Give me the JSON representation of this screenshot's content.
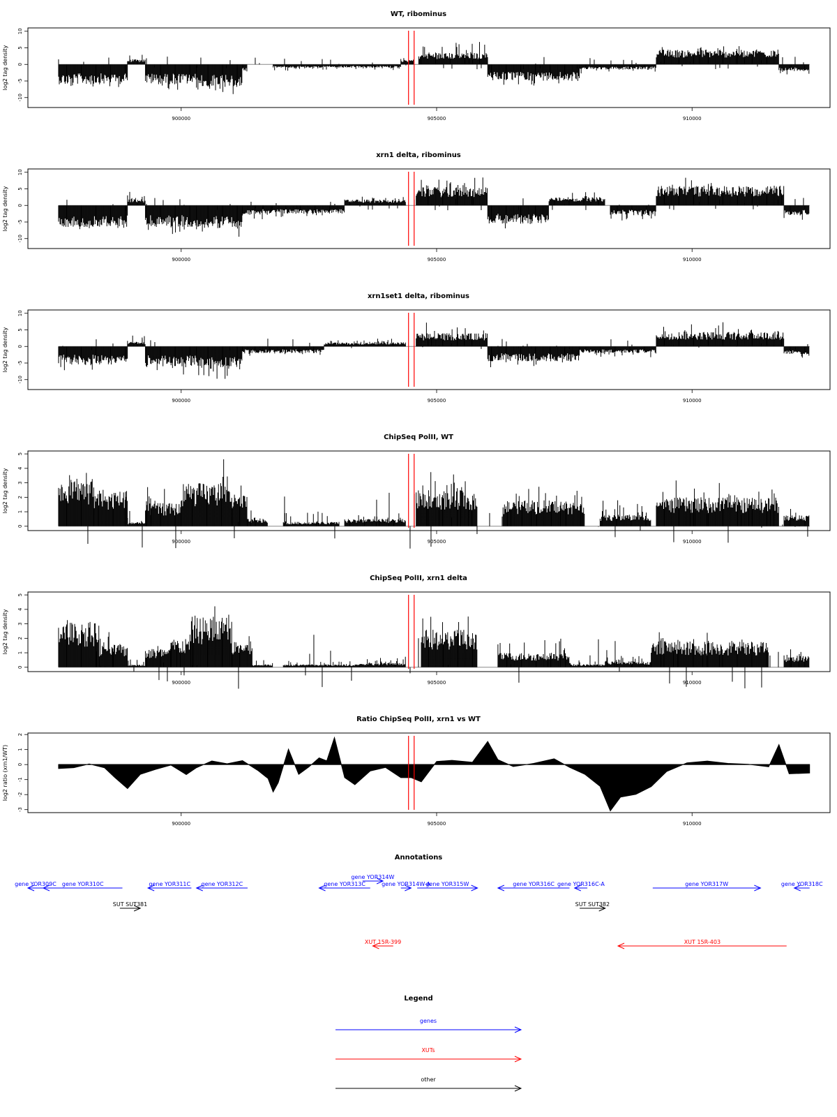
{
  "chart_data": [
    {
      "type": "bar",
      "title": "WT, ribominus",
      "ylabel": "log2 tag density",
      "xlim": [
        897000,
        912700
      ],
      "ylim": [
        -13,
        11
      ],
      "yticks": [
        10,
        5,
        0,
        -5,
        -10
      ],
      "xticks": [
        900000,
        905000,
        910000
      ],
      "xtick_labels": [
        "900000",
        "905000",
        "910000"
      ],
      "red_lines": [
        904450,
        904560
      ],
      "series": [
        {
          "values": [
            [
              897600,
              898950,
              -6,
              -9
            ],
            [
              898950,
              899300,
              1.5,
              3.5
            ],
            [
              899300,
              900300,
              -6,
              -9
            ],
            [
              900300,
              901200,
              -7,
              -11
            ],
            [
              901200,
              901300,
              -2,
              -3
            ],
            [
              901800,
              904300,
              -1,
              -2
            ],
            [
              904300,
              904550,
              1.5,
              2.2
            ],
            [
              904650,
              906000,
              3.5,
              8
            ],
            [
              906000,
              907800,
              -5,
              -7
            ],
            [
              907800,
              909300,
              -1.5,
              -3
            ],
            [
              909300,
              911700,
              4.5,
              6.5
            ],
            [
              911700,
              912300,
              -2,
              -3.5
            ]
          ]
        }
      ]
    },
    {
      "type": "bar",
      "title": "xrn1 delta, ribominus",
      "ylabel": "log2 tag density",
      "xlim": [
        897000,
        912700
      ],
      "ylim": [
        -13,
        11
      ],
      "yticks": [
        10,
        5,
        0,
        -5,
        -10
      ],
      "xticks": [
        900000,
        905000,
        910000
      ],
      "xtick_labels": [
        "900000",
        "905000",
        "910000"
      ],
      "red_lines": [
        904450,
        904560
      ],
      "series": [
        {
          "values": [
            [
              897600,
              898950,
              -6.5,
              -9
            ],
            [
              898950,
              899300,
              2,
              4.5
            ],
            [
              899300,
              900300,
              -6.5,
              -9
            ],
            [
              900300,
              901200,
              -7,
              -11
            ],
            [
              901200,
              901600,
              -3,
              -5
            ],
            [
              901600,
              903200,
              -2.5,
              -4
            ],
            [
              903200,
              904400,
              1.8,
              3
            ],
            [
              904600,
              906000,
              5.5,
              9
            ],
            [
              906000,
              907200,
              -5.5,
              -7.5
            ],
            [
              907200,
              908300,
              2.5,
              4.5
            ],
            [
              908400,
              909300,
              -3,
              -5
            ],
            [
              909300,
              911800,
              6,
              8.5
            ],
            [
              911800,
              912300,
              -3,
              -5
            ]
          ]
        }
      ]
    },
    {
      "type": "bar",
      "title": "xrn1set1 delta, ribominus",
      "ylabel": "log2 tag density",
      "xlim": [
        897000,
        912700
      ],
      "ylim": [
        -13,
        11
      ],
      "yticks": [
        10,
        5,
        0,
        -5,
        -10
      ],
      "xticks": [
        900000,
        905000,
        910000
      ],
      "xtick_labels": [
        "900000",
        "905000",
        "910000"
      ],
      "red_lines": [
        904450,
        904560
      ],
      "series": [
        {
          "values": [
            [
              897600,
              898950,
              -5.5,
              -8
            ],
            [
              898950,
              899300,
              1.5,
              4
            ],
            [
              899300,
              900300,
              -6,
              -9
            ],
            [
              900300,
              901200,
              -7,
              -10.5
            ],
            [
              901200,
              902800,
              -2,
              -3.5
            ],
            [
              902800,
              904400,
              1.2,
              2.5
            ],
            [
              904600,
              906000,
              4,
              7.5
            ],
            [
              906000,
              907800,
              -4.5,
              -7
            ],
            [
              907800,
              909300,
              -2,
              -4
            ],
            [
              909300,
              911800,
              4.5,
              7.5
            ],
            [
              911800,
              912300,
              -2.5,
              -4.5
            ]
          ]
        }
      ]
    },
    {
      "type": "bar",
      "title": "ChipSeq PolII, WT",
      "ylabel": "log2 tag density",
      "xlim": [
        897000,
        912700
      ],
      "ylim": [
        -0.3,
        5.2
      ],
      "yticks": [
        0,
        1,
        2,
        3,
        4,
        5
      ],
      "xticks": [
        900000,
        905000,
        910000
      ],
      "xtick_labels": [
        "900000",
        "905000",
        "910000"
      ],
      "red_lines": [
        904450,
        904560
      ],
      "series": [
        {
          "values": [
            [
              897600,
              898300,
              3.3,
              4.3
            ],
            [
              898300,
              898950,
              2.5,
              3.2
            ],
            [
              898950,
              899300,
              0.3,
              1
            ],
            [
              899300,
              900000,
              1.6,
              2.8
            ],
            [
              900000,
              901000,
              3,
              4.9
            ],
            [
              901000,
              901300,
              2.2,
              3.2
            ],
            [
              901300,
              901700,
              0.5,
              1
            ],
            [
              902000,
              903100,
              0.3,
              1
            ],
            [
              903200,
              904400,
              0.5,
              1
            ],
            [
              904600,
              905800,
              2.5,
              4
            ],
            [
              906300,
              907900,
              1.8,
              3
            ],
            [
              908200,
              909200,
              0.8,
              2
            ],
            [
              909300,
              911700,
              2,
              3.3
            ],
            [
              911800,
              912300,
              0.8,
              1.6
            ]
          ]
        }
      ]
    },
    {
      "type": "bar",
      "title": "ChipSeq PolII, xrn1 delta",
      "ylabel": "log2 tag density",
      "xlim": [
        897000,
        912700
      ],
      "ylim": [
        -0.3,
        5.2
      ],
      "yticks": [
        0,
        1,
        2,
        3,
        4,
        5
      ],
      "xticks": [
        900000,
        905000,
        910000
      ],
      "xtick_labels": [
        "900000",
        "905000",
        "910000"
      ],
      "red_lines": [
        904450,
        904560
      ],
      "series": [
        {
          "values": [
            [
              897600,
              898400,
              3.1,
              3.9
            ],
            [
              898400,
              898950,
              1.6,
              2.6
            ],
            [
              898950,
              899300,
              0.2,
              0.6
            ],
            [
              899300,
              899800,
              1.3,
              2.3
            ],
            [
              899800,
              900200,
              2,
              3
            ],
            [
              900200,
              901000,
              3.5,
              4.9
            ],
            [
              901000,
              901400,
              1.8,
              3
            ],
            [
              901400,
              901800,
              0.2,
              0.6
            ],
            [
              902000,
              903500,
              0.2,
              0.6
            ],
            [
              903500,
              904400,
              0.3,
              0.8
            ],
            [
              904700,
              905800,
              2.6,
              3.8
            ],
            [
              906200,
              907600,
              1,
              2.3
            ],
            [
              907600,
              908300,
              0.2,
              0.5
            ],
            [
              908300,
              909200,
              0.4,
              1
            ],
            [
              909200,
              911500,
              1.8,
              2.8
            ],
            [
              911800,
              912300,
              0.8,
              1.6
            ]
          ]
        }
      ]
    },
    {
      "type": "area",
      "title": "Ratio ChipSeq PolII, xrn1 vs WT",
      "ylabel": "log2 ratio (xrn1/WT)",
      "xlim": [
        897000,
        912700
      ],
      "ylim": [
        -3.2,
        2.1
      ],
      "yticks": [
        2,
        1,
        0,
        -1,
        -2,
        -3
      ],
      "xticks": [
        900000,
        905000,
        910000
      ],
      "xtick_labels": [
        "900000",
        "905000",
        "910000"
      ],
      "red_lines": [
        904450,
        904560
      ],
      "series": [
        {
          "x": [
            897600,
            897900,
            898200,
            898500,
            898700,
            898950,
            899200,
            899500,
            899800,
            900100,
            900300,
            900600,
            900900,
            901200,
            901500,
            901700,
            901800,
            901900,
            902100,
            902300,
            902500,
            902700,
            902850,
            903000,
            903200,
            903400,
            903700,
            904000,
            904300,
            904500,
            904700,
            905000,
            905300,
            905700,
            906000,
            906200,
            906500,
            906900,
            907300,
            907600,
            907900,
            908200,
            908400,
            908600,
            908900,
            909200,
            909500,
            909900,
            910300,
            910700,
            911100,
            911500,
            911700,
            911900,
            912300
          ],
          "values": [
            -0.3,
            -0.2,
            0.1,
            -0.2,
            -0.8,
            -1.6,
            -0.7,
            -0.3,
            -0.1,
            -0.7,
            -0.2,
            0.3,
            0.1,
            0.2,
            -0.4,
            -1.0,
            -1.8,
            -1.2,
            1.0,
            -0.6,
            -0.2,
            0.4,
            0.2,
            1.8,
            -0.8,
            -1.3,
            -0.4,
            -0.2,
            -0.8,
            -0.9,
            -1.1,
            0.2,
            0.3,
            0.2,
            1.5,
            0.3,
            -0.1,
            0.1,
            0.4,
            -0.2,
            -0.6,
            -1.4,
            -3.1,
            -2.2,
            -2.0,
            -1.5,
            -0.4,
            0.1,
            0.2,
            0.1,
            0.0,
            -0.2,
            1.4,
            -0.6,
            -0.6
          ]
        }
      ]
    }
  ],
  "annotations": {
    "title": "Annotations",
    "xlim": [
      897000,
      912700
    ],
    "items": [
      {
        "label": "gene YOR309C",
        "x0": 897000,
        "x1": 897300,
        "row": 0,
        "dir": "left",
        "color": "#0000ff"
      },
      {
        "label": "gene YOR310C",
        "x0": 897300,
        "x1": 898850,
        "row": 0,
        "dir": "left",
        "color": "#0000ff"
      },
      {
        "label": "gene YOR311C",
        "x0": 899350,
        "x1": 900200,
        "row": 0,
        "dir": "left",
        "color": "#0000ff"
      },
      {
        "label": "gene YOR312C",
        "x0": 900300,
        "x1": 901300,
        "row": 0,
        "dir": "left",
        "color": "#0000ff"
      },
      {
        "label": "gene YOR313C",
        "x0": 902700,
        "x1": 903700,
        "row": 0,
        "dir": "left",
        "color": "#0000ff"
      },
      {
        "label": "gene YOR314W",
        "x0": 903550,
        "x1": 903950,
        "row": -1,
        "dir": "right",
        "color": "#0000ff"
      },
      {
        "label": "gene YOR314W-A",
        "x0": 904300,
        "x1": 904500,
        "row": 0,
        "dir": "right",
        "color": "#0000ff"
      },
      {
        "label": "gene YOR315W",
        "x0": 904620,
        "x1": 905800,
        "row": 0,
        "dir": "right",
        "color": "#0000ff"
      },
      {
        "label": "gene YOR316C",
        "x0": 906200,
        "x1": 907600,
        "row": 0,
        "dir": "left",
        "color": "#0000ff"
      },
      {
        "label": "gene YOR316C-A",
        "x0": 907700,
        "x1": 907950,
        "row": 0,
        "dir": "left",
        "color": "#0000ff"
      },
      {
        "label": "gene YOR317W",
        "x0": 909230,
        "x1": 911340,
        "row": 0,
        "dir": "right",
        "color": "#0000ff"
      },
      {
        "label": "gene YOR318C",
        "x0": 912000,
        "x1": 912300,
        "row": 0,
        "dir": "left",
        "color": "#0000ff"
      },
      {
        "label": "SUT SUT381",
        "x0": 898800,
        "x1": 899200,
        "row": 1,
        "dir": "right",
        "color": "#000000"
      },
      {
        "label": "SUT SUT382",
        "x0": 907800,
        "x1": 908300,
        "row": 1,
        "dir": "right",
        "color": "#000000"
      },
      {
        "label": "XUT 15R-399",
        "x0": 903750,
        "x1": 904150,
        "row": 2,
        "dir": "left",
        "color": "#ff0000"
      },
      {
        "label": "XUT 15R-403",
        "x0": 908550,
        "x1": 911850,
        "row": 2,
        "dir": "left",
        "color": "#ff0000"
      }
    ]
  },
  "legend": {
    "title": "Legend",
    "entries": [
      {
        "label": "genes",
        "color": "#0000ff"
      },
      {
        "label": "XUTs",
        "color": "#ff0000"
      },
      {
        "label": "other",
        "color": "#000000"
      }
    ]
  },
  "colors": {
    "data": "#000000",
    "marker": "#ff0000",
    "baseline": "#888888"
  }
}
